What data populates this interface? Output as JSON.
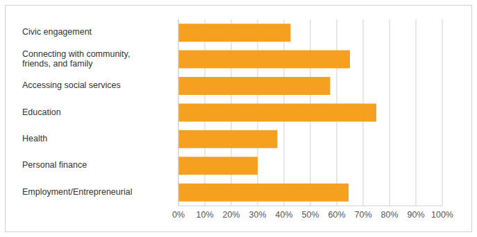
{
  "chart_data": {
    "type": "bar",
    "orientation": "horizontal",
    "categories": [
      "Civic engagement",
      "Connecting with community, friends, and family",
      "Accessing social services",
      "Education",
      "Health",
      "Personal finance",
      "Employment/Entrepreneurial"
    ],
    "values": [
      42.5,
      65,
      57.5,
      75,
      37.5,
      30,
      64.5
    ],
    "color": "#f6a01f",
    "xlim": [
      0,
      100
    ],
    "xticks": [
      {
        "value": 0,
        "label": "0%"
      },
      {
        "value": 10,
        "label": "10%"
      },
      {
        "value": 20,
        "label": "20%"
      },
      {
        "value": 30,
        "label": "30%"
      },
      {
        "value": 40,
        "label": "40%"
      },
      {
        "value": 50,
        "label": "50%"
      },
      {
        "value": 60,
        "label": "60%"
      },
      {
        "value": 70,
        "label": "70%"
      },
      {
        "value": 80,
        "label": "80%"
      },
      {
        "value": 90,
        "label": "90%"
      },
      {
        "value": 100,
        "label": "100%"
      }
    ],
    "grid": true
  }
}
